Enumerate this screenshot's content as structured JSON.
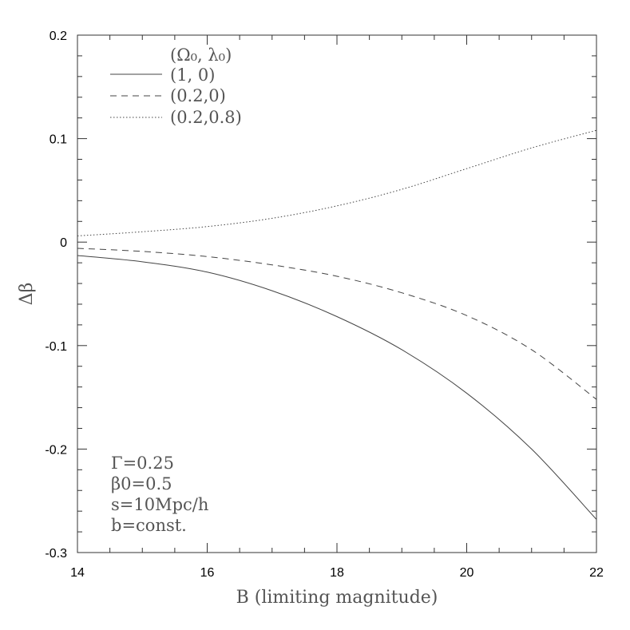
{
  "chart_data": {
    "type": "line",
    "title": "",
    "xlabel": "B (limiting magnitude)",
    "ylabel": "Δβ",
    "xlim": [
      14,
      22
    ],
    "ylim": [
      -0.3,
      0.2
    ],
    "x_ticks": [
      "14",
      "16",
      "18",
      "20",
      "22"
    ],
    "y_ticks": [
      "-0.3",
      "-0.2",
      "-0.1",
      "0",
      "0.1",
      "0.2"
    ],
    "grid": false,
    "legend_placement": "top-left",
    "legend_header": "(Ω₀, λ₀)",
    "x": [
      14,
      15,
      16,
      17,
      18,
      19,
      20,
      21,
      22
    ],
    "series": [
      {
        "name": "(1, 0)",
        "style": "solid",
        "values": [
          -0.013,
          -0.019,
          -0.029,
          -0.047,
          -0.072,
          -0.104,
          -0.146,
          -0.2,
          -0.268
        ]
      },
      {
        "name": "(0.2,0)",
        "style": "dashed",
        "values": [
          -0.006,
          -0.009,
          -0.014,
          -0.022,
          -0.033,
          -0.049,
          -0.071,
          -0.104,
          -0.152
        ]
      },
      {
        "name": "(0.2,0.8)",
        "style": "dotted",
        "values": [
          0.006,
          0.01,
          0.015,
          0.023,
          0.035,
          0.051,
          0.071,
          0.091,
          0.108
        ]
      }
    ],
    "annotations": [
      "Γ=0.25",
      "β0=0.5",
      "s=10Mpc/h",
      "b=const."
    ]
  }
}
